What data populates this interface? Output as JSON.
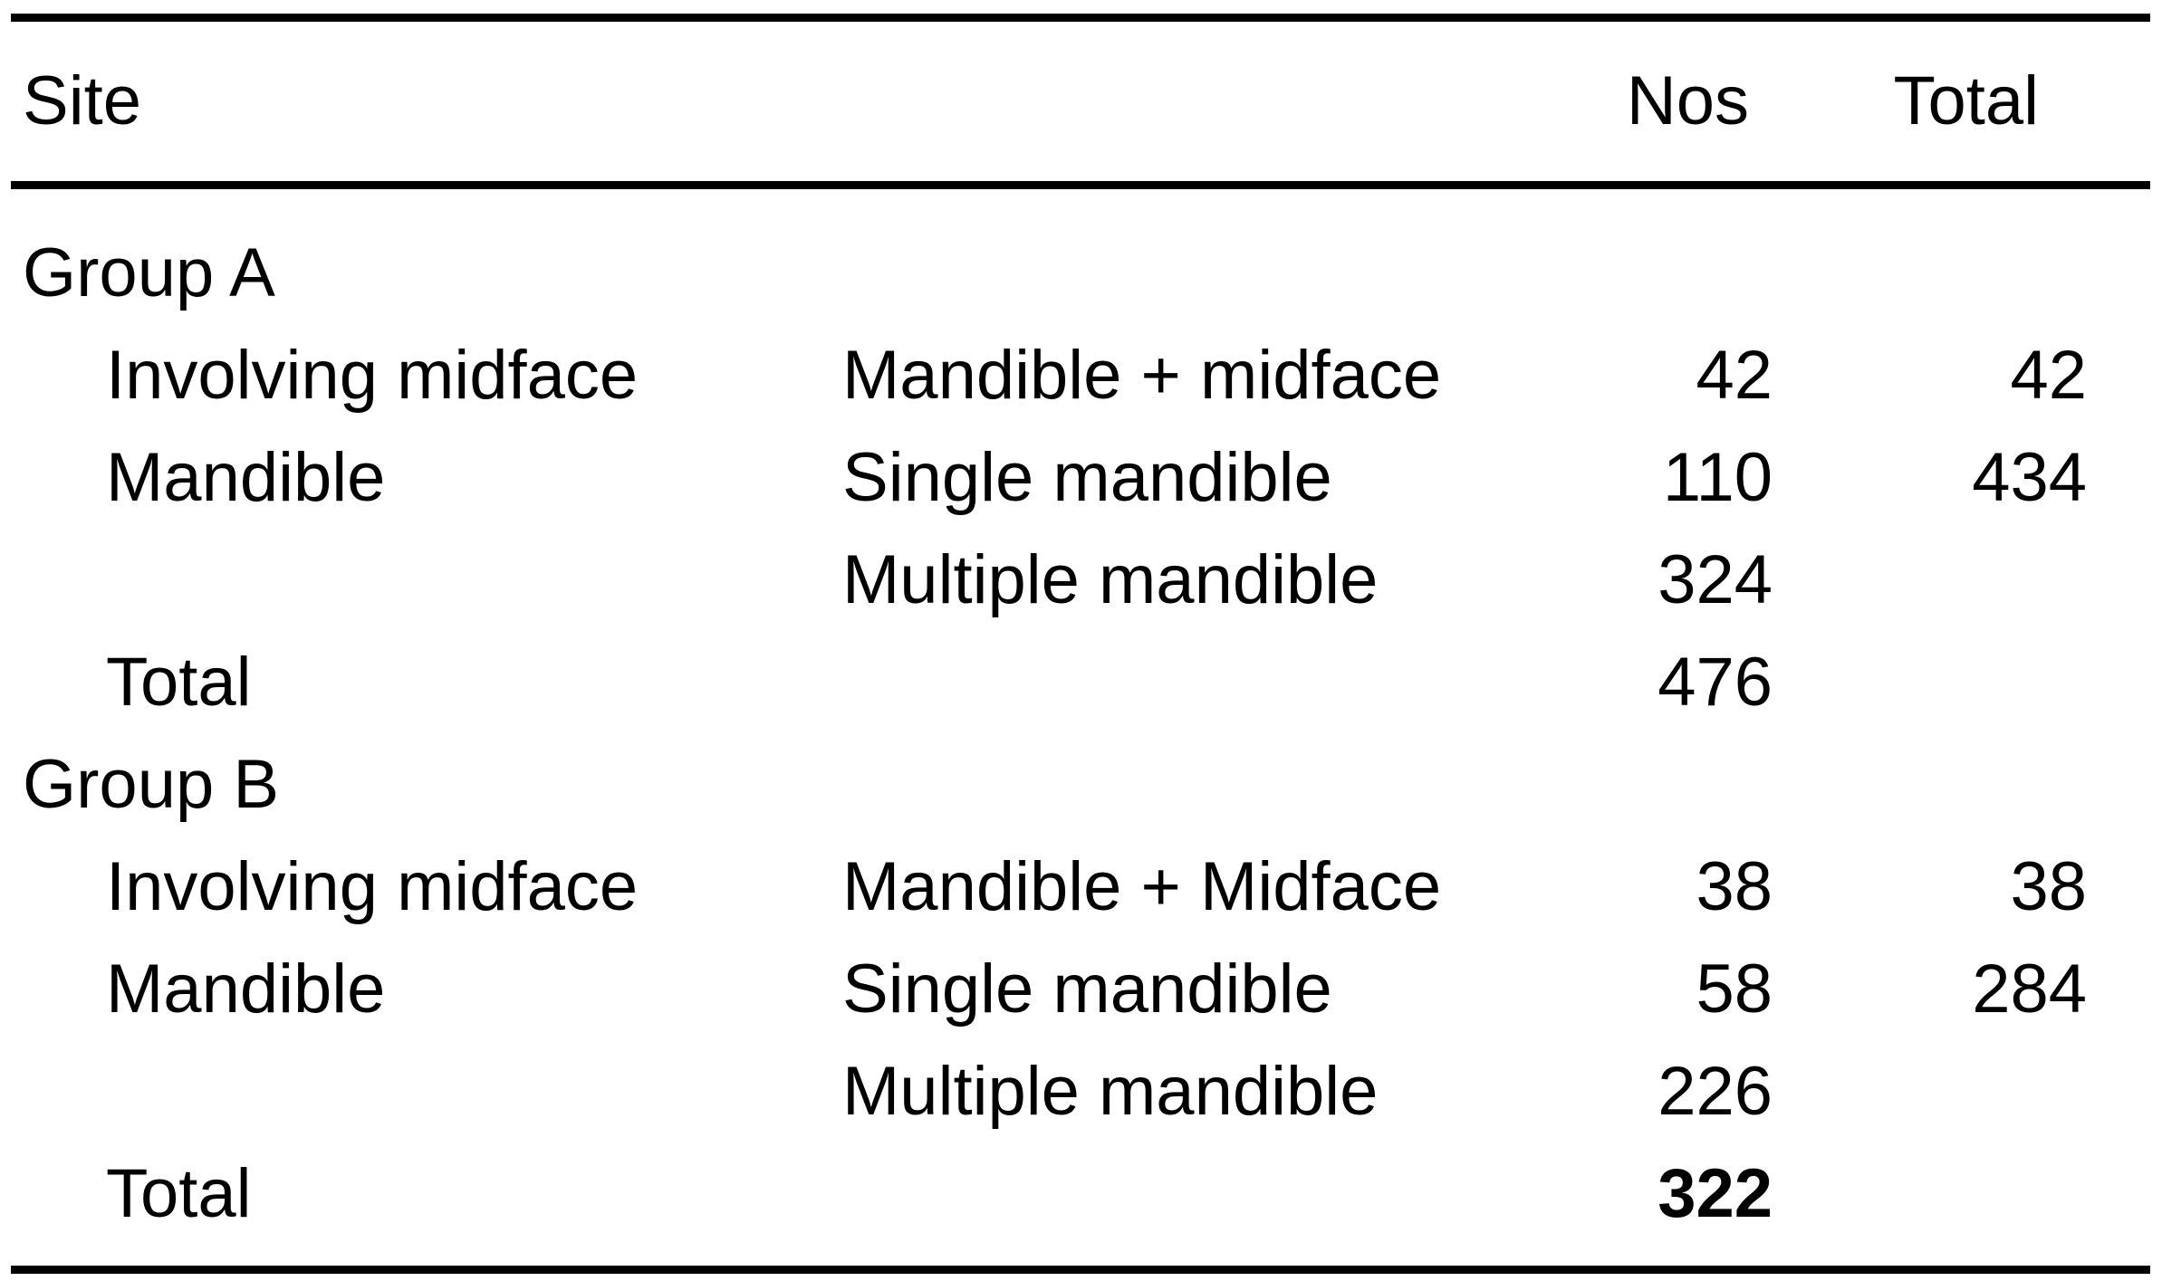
{
  "colors": {
    "background": "#ffffff",
    "text": "#000000",
    "rule": "#000000"
  },
  "table": {
    "header": {
      "site": "Site",
      "nos": "Nos",
      "total": "Total"
    },
    "groups": [
      {
        "label": "Group A",
        "rows": [
          {
            "site": "Involving midface",
            "type": "Mandible + midface",
            "nos": "42",
            "total": "42",
            "bold": false
          },
          {
            "site": "Mandible",
            "type": "Single mandible",
            "nos": "110",
            "total": "434",
            "bold": false
          },
          {
            "site": "",
            "type": "Multiple mandible",
            "nos": "324",
            "total": "",
            "bold": false
          },
          {
            "site": "Total",
            "type": "",
            "nos": "476",
            "total": "",
            "bold": false
          }
        ]
      },
      {
        "label": "Group B",
        "rows": [
          {
            "site": "Involving midface",
            "type": "Mandible + Midface",
            "nos": "38",
            "total": "38",
            "bold": false
          },
          {
            "site": "Mandible",
            "type": "Single mandible",
            "nos": "58",
            "total": "284",
            "bold": false
          },
          {
            "site": "",
            "type": "Multiple mandible",
            "nos": "226",
            "total": "",
            "bold": false
          },
          {
            "site": "Total",
            "type": "",
            "nos": "322",
            "total": "",
            "bold": true
          }
        ]
      }
    ]
  }
}
